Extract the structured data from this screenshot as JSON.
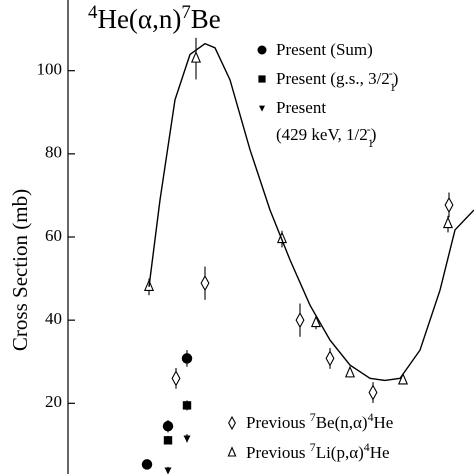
{
  "chart_data": {
    "type": "scatter",
    "title": [
      {
        "text": "4",
        "pos": "sup"
      },
      {
        "text": "He(α,n)"
      },
      {
        "text": "7",
        "pos": "sup"
      },
      {
        "text": "Be"
      }
    ],
    "ylabel": "Cross Section (mb)",
    "xlim": [
      0,
      406
    ],
    "ylim": [
      3,
      117
    ],
    "yticks": [
      20,
      40,
      60,
      80,
      100
    ],
    "series": [
      {
        "name": [
          [
            {
              "text": "Present (Sum)"
            }
          ]
        ],
        "marker": "circle",
        "color": "#000",
        "x": [
          79,
          100,
          119
        ],
        "values": [
          5.3,
          14.5,
          30.8
        ],
        "errors": [
          1.2,
          1.5,
          2
        ]
      },
      {
        "name": [
          [
            {
              "text": "Present (g.s., 3/2"
            },
            {
              "text": "1",
              "pos": "sub"
            },
            {
              "text": "-",
              "pos": "sup"
            },
            {
              "text": ")"
            }
          ]
        ],
        "marker": "square",
        "color": "#000",
        "x": [
          100,
          119
        ],
        "values": [
          11.1,
          19.5
        ],
        "errors": [
          1,
          1.2
        ]
      },
      {
        "name": [
          [
            {
              "text": "Present"
            }
          ],
          [
            {
              "text": "(429 keV, 1/2"
            },
            {
              "text": "1",
              "pos": "sub"
            },
            {
              "text": "-",
              "pos": "sup"
            },
            {
              "text": ")"
            }
          ]
        ],
        "marker": "triangle-down",
        "color": "#000",
        "x": [
          100,
          119
        ],
        "values": [
          3.9,
          11.6
        ],
        "errors": [
          0.8,
          1
        ]
      },
      {
        "name": [
          [
            {
              "text": "Previous "
            },
            {
              "text": "7",
              "pos": "sup"
            },
            {
              "text": "Be(n,α)"
            },
            {
              "text": "4",
              "pos": "sup"
            },
            {
              "text": "He"
            }
          ]
        ],
        "marker": "diamond",
        "color": "#000",
        "x": [
          108,
          137,
          232,
          262,
          305,
          381
        ],
        "values": [
          26,
          48.9,
          40,
          30.8,
          22.6,
          67.7
        ],
        "errors": [
          2.5,
          4,
          4,
          2.5,
          2.5,
          3
        ]
      },
      {
        "name": [
          [
            {
              "text": "Previous "
            },
            {
              "text": "7",
              "pos": "sup"
            },
            {
              "text": "Li(p,α)"
            },
            {
              "text": "4",
              "pos": "sup"
            },
            {
              "text": "He"
            }
          ]
        ],
        "marker": "triangle-up",
        "color": "#000",
        "x": [
          81,
          128,
          214,
          248,
          282,
          335,
          380
        ],
        "values": [
          48,
          102.9,
          59.5,
          39.3,
          27.2,
          25.5,
          63.1
        ],
        "errors": [
          2,
          5,
          2,
          1.5,
          1,
          1,
          2
        ]
      },
      {
        "marker": "line",
        "color": "#000",
        "x": [
          81,
          92,
          107,
          122,
          137,
          147,
          162,
          182,
          202,
          222,
          242,
          262,
          282,
          302,
          317,
          332,
          352,
          372,
          387,
          406
        ],
        "values": [
          48,
          68.9,
          93,
          103.9,
          106.5,
          105.5,
          97.8,
          81,
          66.5,
          54.5,
          43.6,
          35.2,
          29.2,
          26,
          25.5,
          26,
          32.8,
          47.2,
          61.7,
          66.5
        ]
      }
    ]
  }
}
